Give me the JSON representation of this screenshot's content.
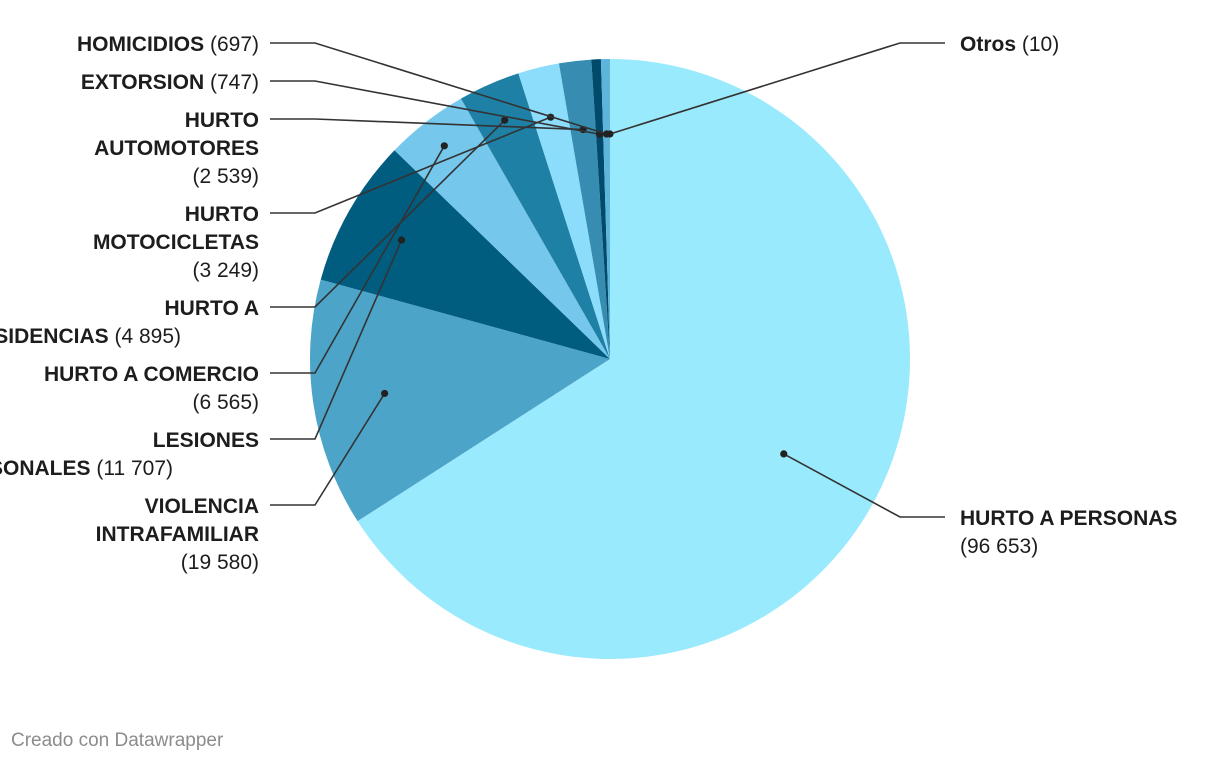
{
  "chart_data": {
    "type": "pie",
    "title": "",
    "slices": [
      {
        "label": "HURTO A PERSONAS",
        "value": 96653,
        "value_text": "96 653",
        "color": "#9aeafd"
      },
      {
        "label": "VIOLENCIA INTRAFAMILIAR",
        "value": 19580,
        "value_text": "19 580",
        "color": "#4ca4c8"
      },
      {
        "label": "LESIONES PERSONALES",
        "value": 11707,
        "value_text": "11 707",
        "color": "#005d80"
      },
      {
        "label": "HURTO A COMERCIO",
        "value": 6565,
        "value_text": "6 565",
        "color": "#75c8ec"
      },
      {
        "label": "HURTO A RESIDENCIAS",
        "value": 4895,
        "value_text": "4 895",
        "color": "#1f80a6"
      },
      {
        "label": "HURTO MOTOCICLETAS",
        "value": 3249,
        "value_text": "3 249",
        "color": "#8cdcfb"
      },
      {
        "label": "HURTO AUTOMOTORES",
        "value": 2539,
        "value_text": "2 539",
        "color": "#368db1"
      },
      {
        "label": "EXTORSION",
        "value": 747,
        "value_text": "747",
        "color": "#004a6b"
      },
      {
        "label": "HOMICIDIOS",
        "value": 697,
        "value_text": "697",
        "color": "#5db5dc"
      },
      {
        "label": "Otros",
        "value": 10,
        "value_text": "10",
        "color": "#2e7ea3"
      }
    ]
  },
  "footer": {
    "credit": "Creado con Datawrapper"
  }
}
